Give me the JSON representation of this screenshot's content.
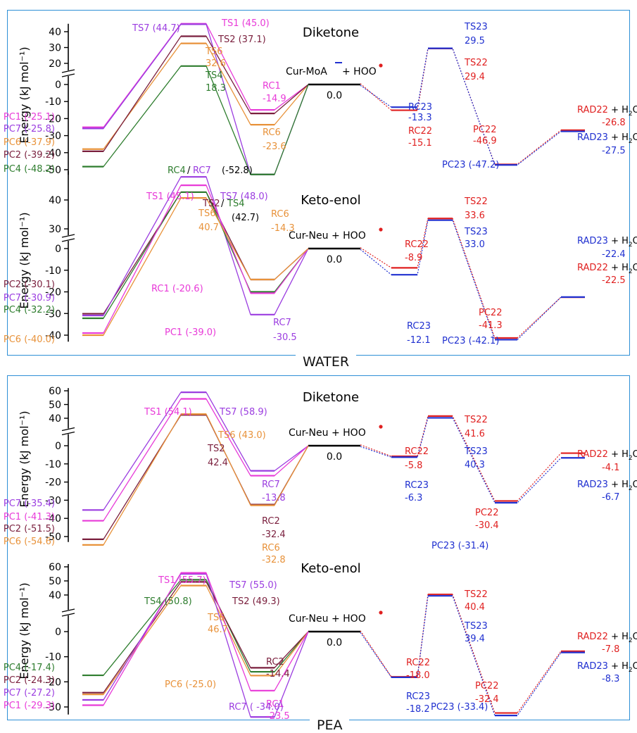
{
  "colors": {
    "PC1": "#e83ad8",
    "PC7": "#9b3de0",
    "PC6": "#e8923a",
    "PC2": "#7a1f3d",
    "PC4": "#2e7d2e",
    "black": "#000000",
    "red": "#e02020",
    "blue": "#2030d0",
    "axis": "#000000",
    "frame": "#2e8fd6"
  },
  "solvent_labels": [
    "WATER",
    "PEA"
  ],
  "chart_data": [
    {
      "type": "energy-profile",
      "panel_title": "Diketone",
      "solvent": "WATER",
      "ylabel": "Energy (kJ mol⁻¹)",
      "ylim": [
        -55,
        45
      ],
      "yticks": [
        -50,
        -40,
        -30,
        -20,
        -10,
        0,
        20,
        30,
        40
      ],
      "ytick_labels": [
        "-50",
        "-40",
        "-30",
        "-20",
        "-10",
        "0",
        "20",
        "30",
        "40"
      ],
      "reference": {
        "label": "Cur-MoA",
        "label2": " + HOO",
        "value": 0.0,
        "value_label": "0.0"
      },
      "left_pathways": [
        {
          "name": "1",
          "color": "PC1",
          "PC": -25.1,
          "TS": 45.0,
          "RC": -14.9
        },
        {
          "name": "7",
          "color": "PC7",
          "PC": -25.8,
          "TS": 44.7,
          "RC": -52.8
        },
        {
          "name": "6",
          "color": "PC6",
          "PC": -37.9,
          "TS": 32.6,
          "RC": -23.6
        },
        {
          "name": "2",
          "color": "PC2",
          "PC": -39.2,
          "TS": 37.1,
          "RC": -17.0
        },
        {
          "name": "4",
          "color": "PC4",
          "PC": -48.2,
          "TS": 18.3,
          "RC": -52.8
        }
      ],
      "right_pathways": [
        {
          "name": "22",
          "color": "red",
          "RC": -15.1,
          "TS": 29.4,
          "PC": -46.9,
          "RAD": -26.8
        },
        {
          "name": "23",
          "color": "blue",
          "RC": -13.3,
          "TS": 29.5,
          "PC": -47.2,
          "RAD": -27.5
        }
      ],
      "labels": [
        {
          "text": "PC1 (-25.1)",
          "color": "PC1"
        },
        {
          "text": "PC7 (-25.8)",
          "color": "PC7"
        },
        {
          "text": "PC6 (-37.9)",
          "color": "PC6"
        },
        {
          "text": "PC2 (-39.2)",
          "color": "PC2"
        },
        {
          "text": "PC4 (-48.2)",
          "color": "PC4"
        },
        {
          "text": "TS7 (44.7)",
          "color": "PC7"
        },
        {
          "text": "TS1 (45.0)",
          "color": "PC1"
        },
        {
          "text": "TS2 (37.1)",
          "color": "PC2"
        },
        {
          "text": "TS6",
          "color": "PC6"
        },
        {
          "text": "32.6",
          "color": "PC6"
        },
        {
          "text": "TS4",
          "color": "PC4"
        },
        {
          "text": "18.3",
          "color": "PC4"
        },
        {
          "text": "RC1",
          "color": "PC1"
        },
        {
          "text": "-14.9",
          "color": "PC1"
        },
        {
          "text": "RC6",
          "color": "PC6"
        },
        {
          "text": "-23.6",
          "color": "PC6"
        },
        {
          "text": "RC4",
          "color": "PC4"
        },
        {
          "text": "/",
          "color": "black"
        },
        {
          "text": "RC7",
          "color": "PC7"
        },
        {
          "text": " (-52.8)",
          "color": "black"
        },
        {
          "text": "RC23",
          "color": "blue"
        },
        {
          "text": "-13.3",
          "color": "blue"
        },
        {
          "text": "RC22",
          "color": "red"
        },
        {
          "text": "-15.1",
          "color": "red"
        },
        {
          "text": "TS23",
          "color": "blue"
        },
        {
          "text": "29.5",
          "color": "blue"
        },
        {
          "text": "TS22",
          "color": "red"
        },
        {
          "text": "29.4",
          "color": "red"
        },
        {
          "text": "PC22",
          "color": "red"
        },
        {
          "text": "-46.9",
          "color": "red"
        },
        {
          "text": "PC23 (-47.2)",
          "color": "blue"
        },
        {
          "text": "RAD22",
          "color": "red"
        },
        {
          "text": "-26.8",
          "color": "red"
        },
        {
          "text": "RAD23",
          "color": "blue"
        },
        {
          "text": "-27.5",
          "color": "blue"
        }
      ]
    },
    {
      "type": "energy-profile",
      "panel_title": "Keto-enol",
      "solvent": "WATER",
      "ylabel": "Energy (kJ mol⁻¹)",
      "ylim": [
        -45,
        50
      ],
      "yticks": [
        -40,
        -30,
        -20,
        -10,
        0,
        30,
        40
      ],
      "ytick_labels": [
        "-40",
        "-30",
        "-20",
        "-10",
        "0",
        "30",
        "40"
      ],
      "reference": {
        "label": "Cur-Neu + HOO",
        "value": 0.0,
        "value_label": "0.0"
      },
      "left_pathways": [
        {
          "name": "2",
          "color": "PC2",
          "PC": -30.1,
          "TS": 42.7,
          "RC": -14.3
        },
        {
          "name": "7",
          "color": "PC7",
          "PC": -30.9,
          "TS": 48.0,
          "RC": -30.5
        },
        {
          "name": "4",
          "color": "PC4",
          "PC": -32.2,
          "TS": 42.7,
          "RC": -20.0
        },
        {
          "name": "1",
          "color": "PC1",
          "PC": -39.0,
          "TS": 45.1,
          "RC": -20.6
        },
        {
          "name": "6",
          "color": "PC6",
          "PC": -40.0,
          "TS": 40.7,
          "RC": -14.3
        }
      ],
      "right_pathways": [
        {
          "name": "22",
          "color": "red",
          "RC": -8.9,
          "TS": 33.6,
          "PC": -41.3,
          "RAD": -22.5
        },
        {
          "name": "23",
          "color": "blue",
          "RC": -12.1,
          "TS": 33.0,
          "PC": -42.1,
          "RAD": -22.4
        }
      ],
      "labels": [
        {
          "text": "PC2 (-30.1)",
          "color": "PC2"
        },
        {
          "text": "PC7 (-30.9)",
          "color": "PC7"
        },
        {
          "text": "PC4 (-32.2)",
          "color": "PC4"
        },
        {
          "text": "PC6 (-40.0)",
          "color": "PC6"
        },
        {
          "text": "PC1 (-39.0)",
          "color": "PC1"
        },
        {
          "text": "TS1 (45.1)",
          "color": "PC1"
        },
        {
          "text": "TS7 (48.0)",
          "color": "PC7"
        },
        {
          "text": "TS2",
          "color": "PC2"
        },
        {
          "text": "/",
          "color": "black"
        },
        {
          "text": "TS4",
          "color": "PC4"
        },
        {
          "text": "(42.7)",
          "color": "black"
        },
        {
          "text": "TS6",
          "color": "PC6"
        },
        {
          "text": "40.7",
          "color": "PC6"
        },
        {
          "text": "RC6",
          "color": "PC6"
        },
        {
          "text": "-14.3",
          "color": "PC6"
        },
        {
          "text": "RC1 (-20.6)",
          "color": "PC1"
        },
        {
          "text": "RC7",
          "color": "PC7"
        },
        {
          "text": "-30.5",
          "color": "PC7"
        },
        {
          "text": "RC22",
          "color": "red"
        },
        {
          "text": "-8.9",
          "color": "red"
        },
        {
          "text": "RC23",
          "color": "blue"
        },
        {
          "text": "-12.1",
          "color": "blue"
        },
        {
          "text": "TS22",
          "color": "red"
        },
        {
          "text": "33.6",
          "color": "red"
        },
        {
          "text": "TS23",
          "color": "blue"
        },
        {
          "text": "33.0",
          "color": "blue"
        },
        {
          "text": "PC22",
          "color": "red"
        },
        {
          "text": "-41.3",
          "color": "red"
        },
        {
          "text": "PC23 (-42.1)",
          "color": "blue"
        },
        {
          "text": "RAD23",
          "color": "blue"
        },
        {
          "text": "-22.4",
          "color": "blue"
        },
        {
          "text": "RAD22",
          "color": "red"
        },
        {
          "text": "-22.5",
          "color": "red"
        }
      ]
    },
    {
      "type": "energy-profile",
      "panel_title": "Diketone",
      "solvent": "PEA",
      "ylabel": "Energy (kJ mol⁻¹)",
      "ylim": [
        -58,
        62
      ],
      "yticks": [
        -50,
        -40,
        -30,
        -20,
        -10,
        0,
        40,
        50,
        60
      ],
      "ytick_labels": [
        "-50",
        "-40",
        "-30",
        "-20",
        "-10",
        "0",
        "40",
        "50",
        "60"
      ],
      "reference": {
        "label": "Cur-Neu + HOO",
        "value": 0.0,
        "value_label": "0.0"
      },
      "left_pathways": [
        {
          "name": "7",
          "color": "PC7",
          "PC": -35.4,
          "TS": 58.9,
          "RC": -13.8
        },
        {
          "name": "1",
          "color": "PC1",
          "PC": -41.3,
          "TS": 54.1,
          "RC": -16.5
        },
        {
          "name": "2",
          "color": "PC2",
          "PC": -51.5,
          "TS": 42.4,
          "RC": -32.4
        },
        {
          "name": "6",
          "color": "PC6",
          "PC": -54.6,
          "TS": 43.0,
          "RC": -32.8
        }
      ],
      "right_pathways": [
        {
          "name": "22",
          "color": "red",
          "RC": -5.8,
          "TS": 41.6,
          "PC": -30.4,
          "RAD": -4.1
        },
        {
          "name": "23",
          "color": "blue",
          "RC": -6.3,
          "TS": 40.3,
          "PC": -31.4,
          "RAD": -6.7
        }
      ],
      "labels": [
        {
          "text": "PC7 (-35.4)",
          "color": "PC7"
        },
        {
          "text": "PC1 (-41.3)",
          "color": "PC1"
        },
        {
          "text": "PC2 (-51.5)",
          "color": "PC2"
        },
        {
          "text": "PC6 (-54.6)",
          "color": "PC6"
        },
        {
          "text": "TS1 (54.1)",
          "color": "PC1"
        },
        {
          "text": "TS7 (58.9)",
          "color": "PC7"
        },
        {
          "text": "TS6 (43.0)",
          "color": "PC6"
        },
        {
          "text": "TS2",
          "color": "PC2"
        },
        {
          "text": "42.4",
          "color": "PC2"
        },
        {
          "text": "RC7",
          "color": "PC7"
        },
        {
          "text": "-13.8",
          "color": "PC7"
        },
        {
          "text": "RC2",
          "color": "PC2"
        },
        {
          "text": "-32.4",
          "color": "PC2"
        },
        {
          "text": "RC6",
          "color": "PC6"
        },
        {
          "text": "-32.8",
          "color": "PC6"
        },
        {
          "text": "RC22",
          "color": "red"
        },
        {
          "text": "-5.8",
          "color": "red"
        },
        {
          "text": "RC23",
          "color": "blue"
        },
        {
          "text": "-6.3",
          "color": "blue"
        },
        {
          "text": "TS22",
          "color": "red"
        },
        {
          "text": "41.6",
          "color": "red"
        },
        {
          "text": "TS23",
          "color": "blue"
        },
        {
          "text": "40.3",
          "color": "blue"
        },
        {
          "text": "PC22",
          "color": "red"
        },
        {
          "text": "-30.4",
          "color": "red"
        },
        {
          "text": "PC23 (-31.4)",
          "color": "blue"
        },
        {
          "text": "RAD22",
          "color": "red"
        },
        {
          "text": "-4.1",
          "color": "red"
        },
        {
          "text": "RAD23",
          "color": "blue"
        },
        {
          "text": "-6.7",
          "color": "blue"
        }
      ]
    },
    {
      "type": "energy-profile",
      "panel_title": "Keto-enol",
      "solvent": "PEA",
      "ylabel": "Energy (kJ mol⁻¹)",
      "ylim": [
        -35,
        62
      ],
      "yticks": [
        -30,
        -20,
        -10,
        0,
        40,
        50,
        60
      ],
      "ytick_labels": [
        "-30",
        "-20",
        "-10",
        "0",
        "40",
        "50",
        "60"
      ],
      "reference": {
        "label": "Cur-Neu + HOO",
        "value": 0.0,
        "value_label": "0.0"
      },
      "left_pathways": [
        {
          "name": "4",
          "color": "PC4",
          "PC": -17.4,
          "TS": 50.8,
          "RC": -16.0
        },
        {
          "name": "2",
          "color": "PC2",
          "PC": -24.3,
          "TS": 49.3,
          "RC": -14.4
        },
        {
          "name": "6",
          "color": "PC6",
          "PC": -25.0,
          "TS": 46.7,
          "RC": -17.5
        },
        {
          "name": "7",
          "color": "PC7",
          "PC": -27.2,
          "TS": 55.0,
          "RC": -34.0
        },
        {
          "name": "1",
          "color": "PC1",
          "PC": -29.3,
          "TS": 55.7,
          "RC": -23.5
        }
      ],
      "right_pathways": [
        {
          "name": "22",
          "color": "red",
          "RC": -18.0,
          "TS": 40.4,
          "PC": -32.4,
          "RAD": -7.8
        },
        {
          "name": "23",
          "color": "blue",
          "RC": -18.2,
          "TS": 39.4,
          "PC": -33.4,
          "RAD": -8.3
        }
      ],
      "labels": [
        {
          "text": "PC4 (-17.4)",
          "color": "PC4"
        },
        {
          "text": "PC2 (-24.3)",
          "color": "PC2"
        },
        {
          "text": "PC7 (-27.2)",
          "color": "PC7"
        },
        {
          "text": "PC1 (-29.3)",
          "color": "PC1"
        },
        {
          "text": "PC6 (-25.0)",
          "color": "PC6"
        },
        {
          "text": "TS1 (55.7)",
          "color": "PC1"
        },
        {
          "text": "TS7 (55.0)",
          "color": "PC7"
        },
        {
          "text": "TS4 (50.8)",
          "color": "PC4"
        },
        {
          "text": "TS2 (49.3)",
          "color": "PC2"
        },
        {
          "text": "TS6",
          "color": "PC6"
        },
        {
          "text": "46.7",
          "color": "PC6"
        },
        {
          "text": "RC2",
          "color": "PC2"
        },
        {
          "text": "-14.4",
          "color": "PC2"
        },
        {
          "text": "RC1",
          "color": "PC1"
        },
        {
          "text": "-23.5",
          "color": "PC1"
        },
        {
          "text": "RC7 ( -34.0)",
          "color": "PC7"
        },
        {
          "text": "RC22",
          "color": "red"
        },
        {
          "text": "-18.0",
          "color": "red"
        },
        {
          "text": "RC23",
          "color": "blue"
        },
        {
          "text": "-18.2",
          "color": "blue"
        },
        {
          "text": "TS22",
          "color": "red"
        },
        {
          "text": "40.4",
          "color": "red"
        },
        {
          "text": "TS23",
          "color": "blue"
        },
        {
          "text": "39.4",
          "color": "blue"
        },
        {
          "text": "PC22",
          "color": "red"
        },
        {
          "text": "-32.4",
          "color": "red"
        },
        {
          "text": "PC23 (-33.4)",
          "color": "blue"
        },
        {
          "text": "RAD22",
          "color": "red"
        },
        {
          "text": "-7.8",
          "color": "red"
        },
        {
          "text": "RAD23",
          "color": "blue"
        },
        {
          "text": "-8.3",
          "color": "blue"
        }
      ]
    }
  ]
}
